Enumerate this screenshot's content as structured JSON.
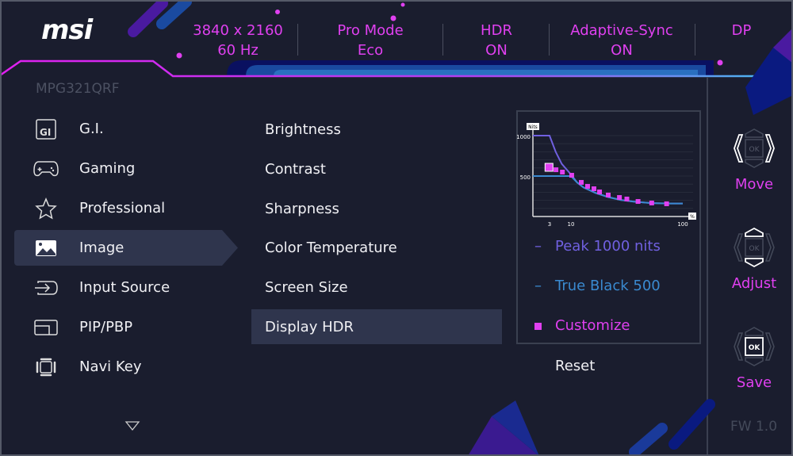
{
  "brand": "msi",
  "header": {
    "items": [
      {
        "line1": "3840 x 2160",
        "line2": "60 Hz"
      },
      {
        "line1": "Pro Mode",
        "line2": "Eco"
      },
      {
        "line1": "HDR",
        "line2": "ON"
      },
      {
        "line1": "Adaptive-Sync",
        "line2": "ON"
      },
      {
        "line1": "DP",
        "line2": ""
      }
    ]
  },
  "model": "MPG321QRF",
  "sidebar": {
    "items": [
      {
        "label": "G.I.",
        "icon": "gi-icon"
      },
      {
        "label": "Gaming",
        "icon": "gamepad-icon"
      },
      {
        "label": "Professional",
        "icon": "star-icon"
      },
      {
        "label": "Image",
        "icon": "image-icon",
        "selected": true
      },
      {
        "label": "Input Source",
        "icon": "input-source-icon"
      },
      {
        "label": "PIP/PBP",
        "icon": "pip-icon"
      },
      {
        "label": "Navi Key",
        "icon": "navi-key-icon"
      }
    ]
  },
  "submenu": {
    "items": [
      {
        "label": "Brightness"
      },
      {
        "label": "Contrast"
      },
      {
        "label": "Sharpness"
      },
      {
        "label": "Color Temperature"
      },
      {
        "label": "Screen Size"
      },
      {
        "label": "Display HDR",
        "selected": true
      }
    ]
  },
  "hdr_options": {
    "items": [
      {
        "label": "Peak 1000 nits",
        "color": "#7060e0",
        "marker": "dash"
      },
      {
        "label": "True Black 500",
        "color": "#3a8ad0",
        "marker": "dash"
      },
      {
        "label": "Customize",
        "color": "#e040f0",
        "marker": "square",
        "selected": true
      }
    ],
    "reset": "Reset"
  },
  "chart_data": {
    "type": "line",
    "ylabel": "Nits",
    "xlabel": "%",
    "yticks": [
      "1000",
      "500"
    ],
    "xticks": [
      "3",
      "10",
      "100"
    ],
    "series": [
      {
        "color": "#7060e0",
        "x": [
          0,
          3,
          5,
          7,
          10,
          15,
          20,
          30,
          40,
          50,
          60,
          75,
          90,
          100
        ],
        "y": [
          1000,
          1000,
          800,
          650,
          520,
          420,
          360,
          290,
          240,
          205,
          185,
          165,
          160,
          160
        ]
      },
      {
        "color": "#3a8ad0",
        "x": [
          0,
          10,
          15,
          20,
          30,
          40,
          50,
          60,
          75,
          90,
          100
        ],
        "y": [
          500,
          500,
          420,
          360,
          290,
          240,
          205,
          185,
          165,
          160,
          160
        ]
      },
      {
        "color": "#e040f0",
        "marker": "square",
        "x": [
          2.9,
          5.1,
          7.2,
          10.6,
          18.3,
          23.4,
          28.5,
          33,
          40,
          49,
          55,
          64,
          75,
          87
        ],
        "y": [
          608,
          578,
          549,
          510,
          422,
          373,
          343,
          304,
          265,
          235,
          216,
          186,
          167,
          157
        ]
      }
    ]
  },
  "controls": [
    {
      "label": "Move",
      "icon": "joystick-left-right-icon"
    },
    {
      "label": "Adjust",
      "icon": "joystick-up-down-icon"
    },
    {
      "label": "Save",
      "icon": "joystick-ok-icon"
    }
  ],
  "ok_text": "OK",
  "firmware": "FW 1.0",
  "colors": {
    "accent": "#e040f0",
    "background": "#1a1d2e",
    "selected": "#2f354d"
  }
}
